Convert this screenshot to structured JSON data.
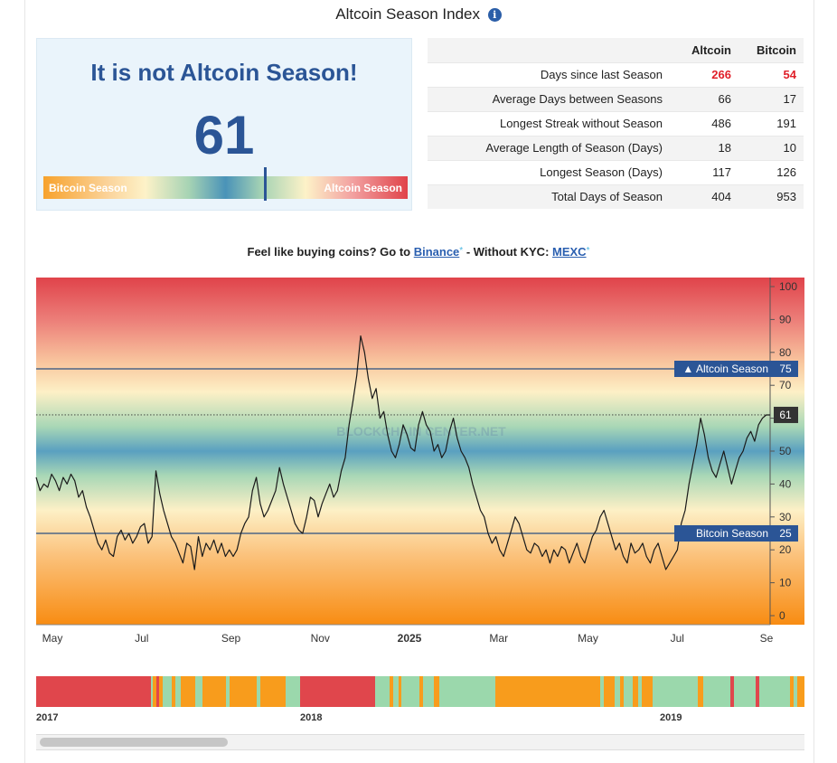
{
  "page": {
    "title": "Altcoin Season Index",
    "info_icon": "i"
  },
  "status": {
    "heading": "It is not Altcoin Season!",
    "value": "61",
    "gauge_left_label": "Bitcoin Season",
    "gauge_right_label": "Altcoin Season",
    "gauge_level": 61
  },
  "stats": {
    "columns": [
      "Altcoin",
      "Bitcoin"
    ],
    "rows": [
      {
        "label": "Days since last Season",
        "altcoin": "266",
        "bitcoin": "54"
      },
      {
        "label": "Average Days between Seasons",
        "altcoin": "66",
        "bitcoin": "17"
      },
      {
        "label": "Longest Streak without Season",
        "altcoin": "486",
        "bitcoin": "191"
      },
      {
        "label": "Average Length of Season (Days)",
        "altcoin": "18",
        "bitcoin": "10"
      },
      {
        "label": "Longest Season (Days)",
        "altcoin": "117",
        "bitcoin": "126"
      },
      {
        "label": "Total Days of Season",
        "altcoin": "404",
        "bitcoin": "953"
      }
    ]
  },
  "promo": {
    "text_before": "Feel like buying coins? Go to ",
    "link1": "Binance",
    "star": "*",
    "text_middle": " - Without KYC: ",
    "link2": "MEXC"
  },
  "chart_data": {
    "type": "line",
    "x_ticks": [
      "May",
      "Jul",
      "Sep",
      "Nov",
      "2025",
      "Mar",
      "May",
      "Jul",
      "Se"
    ],
    "y_ticks": [
      0,
      10,
      20,
      30,
      40,
      50,
      60,
      70,
      80,
      90,
      100
    ],
    "ylim": [
      0,
      100
    ],
    "current_value": 61,
    "current_label": "61",
    "altcoin_line": {
      "value": 75,
      "label": "▲ Altcoin Season",
      "value_label": "75"
    },
    "bitcoin_line": {
      "value": 25,
      "label": "Bitcoin Season",
      "value_label": "25"
    },
    "watermark": "BLOCKCHAIN CENTER.NET",
    "series": [
      {
        "values": [
          42,
          38,
          40,
          39,
          43,
          41,
          38,
          42,
          40,
          43,
          41,
          36,
          38,
          33,
          30,
          26,
          22,
          20,
          23,
          19,
          18,
          24,
          26,
          23,
          25,
          22,
          24,
          27,
          28,
          22,
          24,
          44,
          37,
          32,
          28,
          24,
          22,
          19,
          16,
          22,
          21,
          14,
          24,
          18,
          22,
          20,
          23,
          19,
          22,
          18,
          20,
          18,
          20,
          25,
          28,
          30,
          38,
          42,
          34,
          30,
          32,
          35,
          38,
          45,
          40,
          36,
          32,
          28,
          26,
          25,
          30,
          36,
          35,
          30,
          34,
          37,
          40,
          36,
          38,
          44,
          48,
          58,
          65,
          73,
          85,
          80,
          72,
          66,
          69,
          60,
          62,
          55,
          50,
          48,
          52,
          58,
          55,
          51,
          50,
          58,
          62,
          58,
          56,
          50,
          52,
          48,
          50,
          56,
          60,
          54,
          50,
          48,
          45,
          40,
          36,
          32,
          30,
          25,
          22,
          24,
          20,
          18,
          22,
          26,
          30,
          28,
          24,
          20,
          19,
          22,
          21,
          18,
          20,
          16,
          20,
          18,
          21,
          20,
          16,
          19,
          22,
          18,
          16,
          20,
          24,
          26,
          30,
          32,
          28,
          24,
          20,
          22,
          18,
          16,
          22,
          19,
          20,
          22,
          18,
          16,
          20,
          22,
          18,
          14,
          16,
          18,
          20,
          28,
          32,
          40,
          46,
          52,
          60,
          55,
          48,
          44,
          42,
          46,
          50,
          45,
          40,
          44,
          48,
          50,
          54,
          56,
          53,
          58,
          60,
          61,
          61
        ]
      }
    ]
  },
  "timeline": {
    "labels": [
      "2017",
      "2018",
      "2019"
    ],
    "colors": {
      "altcoin": "#e0464c",
      "bitcoin": "#f89c1c",
      "neutral": "#9bd8ac"
    }
  }
}
